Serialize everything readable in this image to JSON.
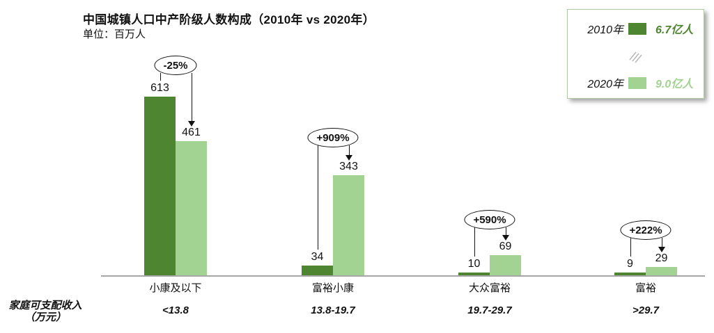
{
  "chart_data": {
    "type": "bar",
    "title": "中国城镇人口中产阶级人数构成（2010年 vs 2020年）",
    "unit_label": "单位：百万人",
    "categories": [
      "小康及以下",
      "富裕小康",
      "大众富裕",
      "富裕"
    ],
    "income_ranges": [
      "<13.8",
      "13.8-19.7",
      "19.7-29.7",
      ">29.7"
    ],
    "xlabel": "家庭可支配收入（万元）",
    "ylabel": "百万人",
    "ylim": [
      0,
      650
    ],
    "grid": false,
    "legend_position": "top-right",
    "series": [
      {
        "name": "2010年",
        "color": "#4e8531",
        "values": [
          613,
          34,
          10,
          9
        ]
      },
      {
        "name": "2020年",
        "color": "#a2d392",
        "values": [
          461,
          343,
          69,
          29
        ]
      }
    ],
    "change_labels": [
      "-25%",
      "+909%",
      "+590%",
      "+222%"
    ]
  },
  "legend": {
    "items": [
      {
        "year": "2010年",
        "total": "6.7亿人",
        "color": "#4e8531"
      },
      {
        "year": "2020年",
        "total": "9.0亿人",
        "color": "#a2d392"
      }
    ],
    "divider_icon": "diagonal-hatch"
  },
  "footer": {
    "line1": "家庭可支配收入",
    "line2": "（万元）"
  },
  "colors": {
    "bar_2010": "#4e8531",
    "bar_2020": "#a2d392",
    "axis": "#a6a6a6",
    "annotation": "#111111"
  }
}
